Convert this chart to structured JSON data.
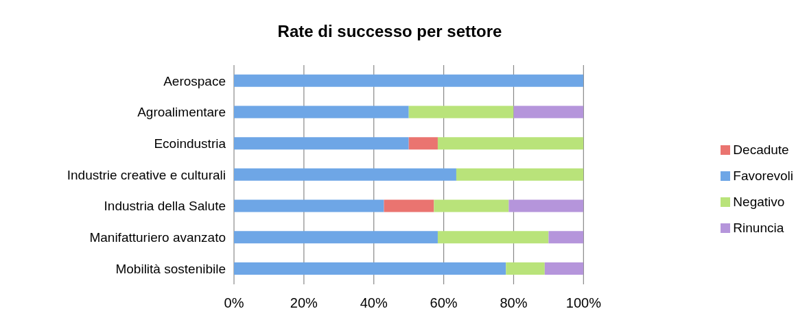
{
  "chart_data": {
    "type": "bar",
    "orientation": "horizontal",
    "stacked": true,
    "title": "Rate di successo per settore",
    "categories": [
      "Aerospace",
      "Agroalimentare",
      "Ecoindustria",
      "Industrie creative e culturali",
      "Industria della Salute",
      "Manifatturiero avanzato",
      "Mobilità sostenibile"
    ],
    "series": [
      {
        "name": "Favorevoli",
        "color": "#6ea6e6",
        "values": [
          100,
          50,
          50,
          63.6,
          42.9,
          58.3,
          77.8
        ]
      },
      {
        "name": "Decadute",
        "color": "#ea7470",
        "values": [
          0,
          0,
          8.3,
          0,
          14.3,
          0,
          0
        ]
      },
      {
        "name": "Negativo",
        "color": "#b9e37a",
        "values": [
          0,
          30,
          41.7,
          36.4,
          21.4,
          31.7,
          11.1
        ]
      },
      {
        "name": "Rinuncia",
        "color": "#b595db",
        "values": [
          0,
          20,
          0,
          0,
          21.4,
          10,
          11.1
        ]
      }
    ],
    "xlim": [
      0,
      100
    ],
    "xticks": [
      {
        "value": 0,
        "label": "0%"
      },
      {
        "value": 20,
        "label": "20%"
      },
      {
        "value": 40,
        "label": "40%"
      },
      {
        "value": 60,
        "label": "60%"
      },
      {
        "value": 80,
        "label": "80%"
      },
      {
        "value": 100,
        "label": "100%"
      }
    ],
    "grid": "x",
    "legend": "right"
  }
}
